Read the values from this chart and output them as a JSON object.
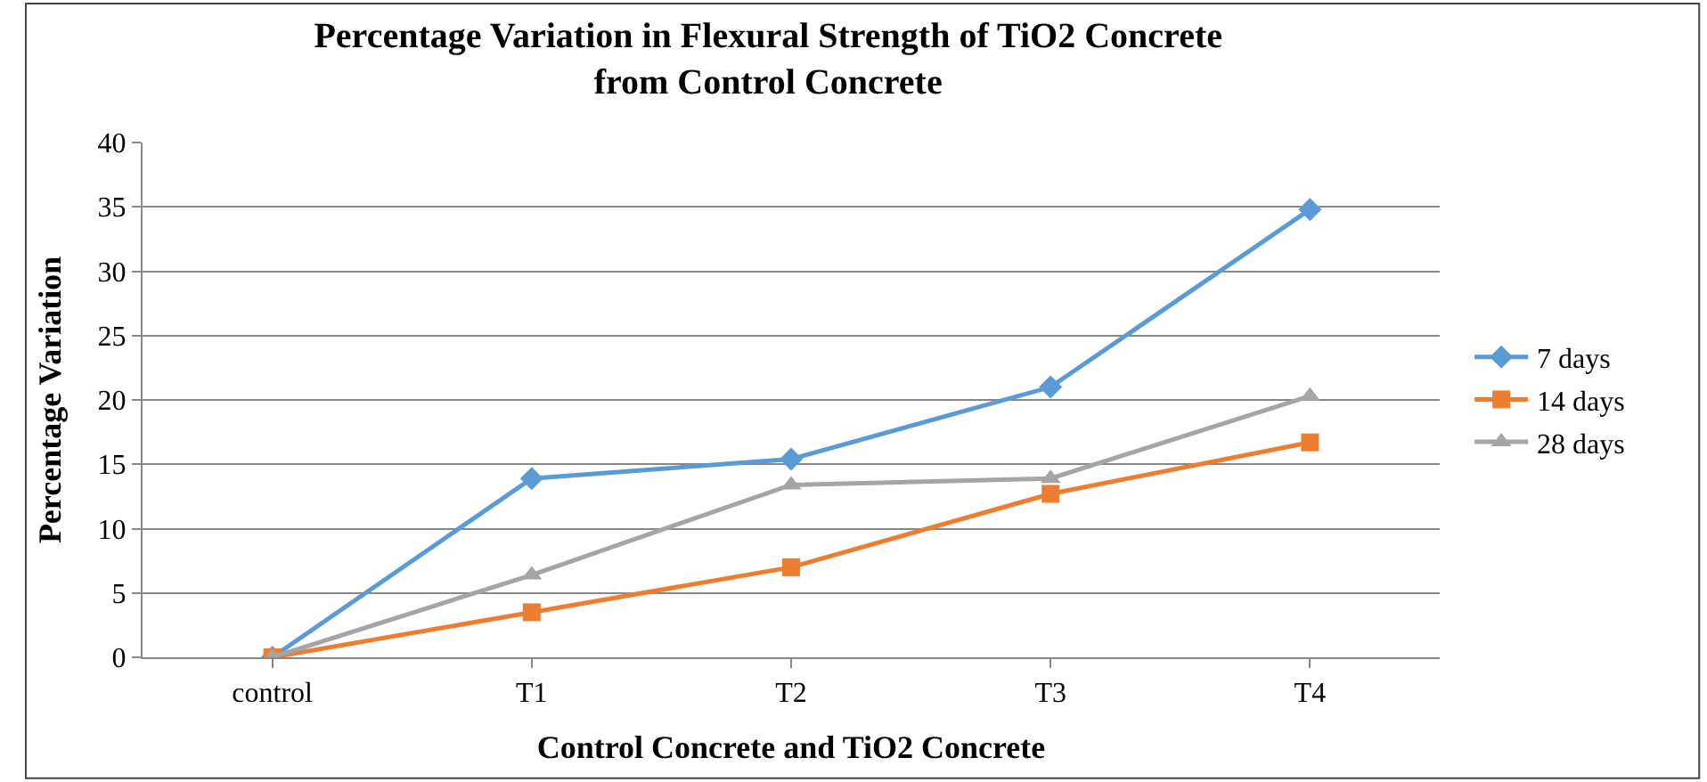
{
  "chart_data": {
    "type": "line",
    "title": "Percentage Variation in Flexural Strength of TiO2 Concrete\nfrom Control Concrete",
    "xlabel": "Control Concrete and TiO2 Concrete",
    "ylabel": "Percentage Variation",
    "categories": [
      "control",
      "T1",
      "T2",
      "T3",
      "T4"
    ],
    "series": [
      {
        "name": "7 days",
        "color": "#5b9bd5",
        "marker": "diamond",
        "values": [
          0,
          13.9,
          15.4,
          21.0,
          34.8
        ]
      },
      {
        "name": "14 days",
        "color": "#ed7d31",
        "marker": "square",
        "values": [
          0,
          3.5,
          7.0,
          12.7,
          16.7
        ]
      },
      {
        "name": "28 days",
        "color": "#a5a5a5",
        "marker": "triangle",
        "values": [
          0,
          6.4,
          13.4,
          13.9,
          20.3
        ]
      }
    ],
    "ylim": [
      0,
      40
    ],
    "yticks": [
      0,
      5,
      10,
      15,
      20,
      25,
      30,
      35,
      40
    ],
    "grid": "y",
    "legend": "right",
    "line_style": "solid"
  }
}
